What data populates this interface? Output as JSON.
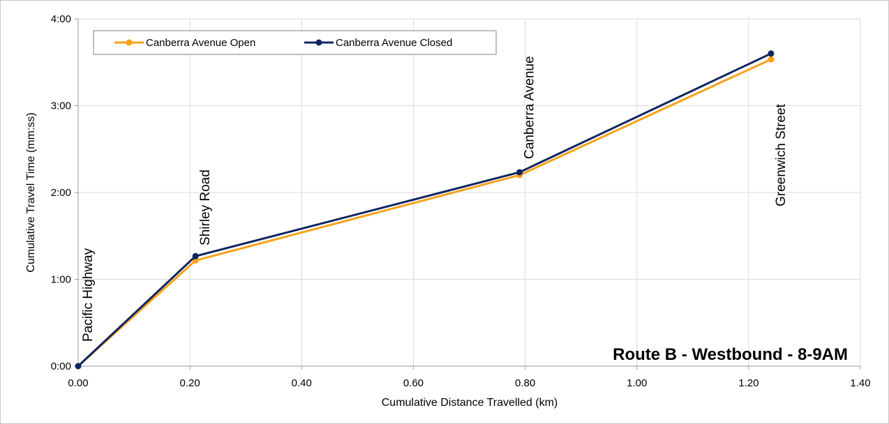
{
  "chart_data": {
    "type": "line",
    "title": "Route B - Westbound - 8-9AM",
    "xlabel": "Cumulative Distance Travelled (km)",
    "ylabel": "Cumulative Travel Time (mm:ss)",
    "xlim": [
      0,
      1.4
    ],
    "ylim": [
      0,
      240
    ],
    "x_ticks": [
      "0.00",
      "0.20",
      "0.40",
      "0.60",
      "0.80",
      "1.00",
      "1.20",
      "1.40"
    ],
    "y_ticks": [
      "0:00",
      "1:00",
      "2:00",
      "3:00",
      "4:00"
    ],
    "grid": true,
    "legend_position": "top-left",
    "series": [
      {
        "name": "Canberra Avenue Open",
        "color": "#F7A11A",
        "x": [
          0.0,
          0.21,
          0.79,
          1.24
        ],
        "y": [
          "0:00",
          "1:13",
          "2:12",
          "3:32"
        ]
      },
      {
        "name": "Canberra Avenue Closed",
        "color": "#0F2460",
        "x": [
          0.0,
          0.21,
          0.79,
          1.24
        ],
        "y": [
          "0:00",
          "1:16",
          "2:14",
          "3:36"
        ]
      }
    ],
    "annotations": [
      {
        "text": "Pacific Highway",
        "x": 0.0
      },
      {
        "text": "Shirley Road",
        "x": 0.21
      },
      {
        "text": "Canberra Avenue",
        "x": 0.79
      },
      {
        "text": "Greenwich Street",
        "x": 1.24
      }
    ]
  }
}
